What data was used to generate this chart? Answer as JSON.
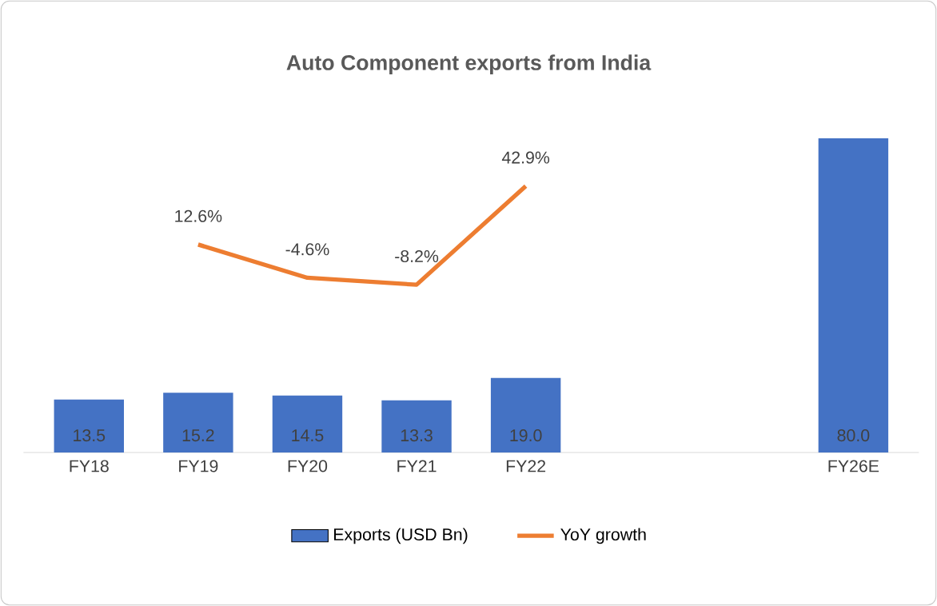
{
  "chart_data": {
    "type": "bar",
    "title": "Auto Component exports from India",
    "categories": [
      "FY18",
      "FY19",
      "FY20",
      "FY21",
      "FY22",
      null,
      null,
      "FY26E"
    ],
    "series": [
      {
        "name": "Exports (USD Bn)",
        "color": "#4472c4",
        "values": [
          13.5,
          15.2,
          14.5,
          13.3,
          19.0,
          null,
          null,
          80.0
        ],
        "value_labels": [
          "13.5",
          "15.2",
          "14.5",
          "13.3",
          "19.0",
          null,
          null,
          "80.0"
        ]
      },
      {
        "name": "YoY growth",
        "type": "line",
        "axis": "y2",
        "color": "#ed7d31",
        "values": [
          null,
          12.6,
          -4.6,
          -8.2,
          42.9,
          null,
          null,
          null
        ],
        "value_labels": [
          null,
          "12.6%",
          "-4.6%",
          "-8.2%",
          "42.9%",
          null,
          null,
          null
        ]
      }
    ],
    "tick_labels": "x",
    "legend": "bottom",
    "marker": "none",
    "line_style": "solid"
  }
}
